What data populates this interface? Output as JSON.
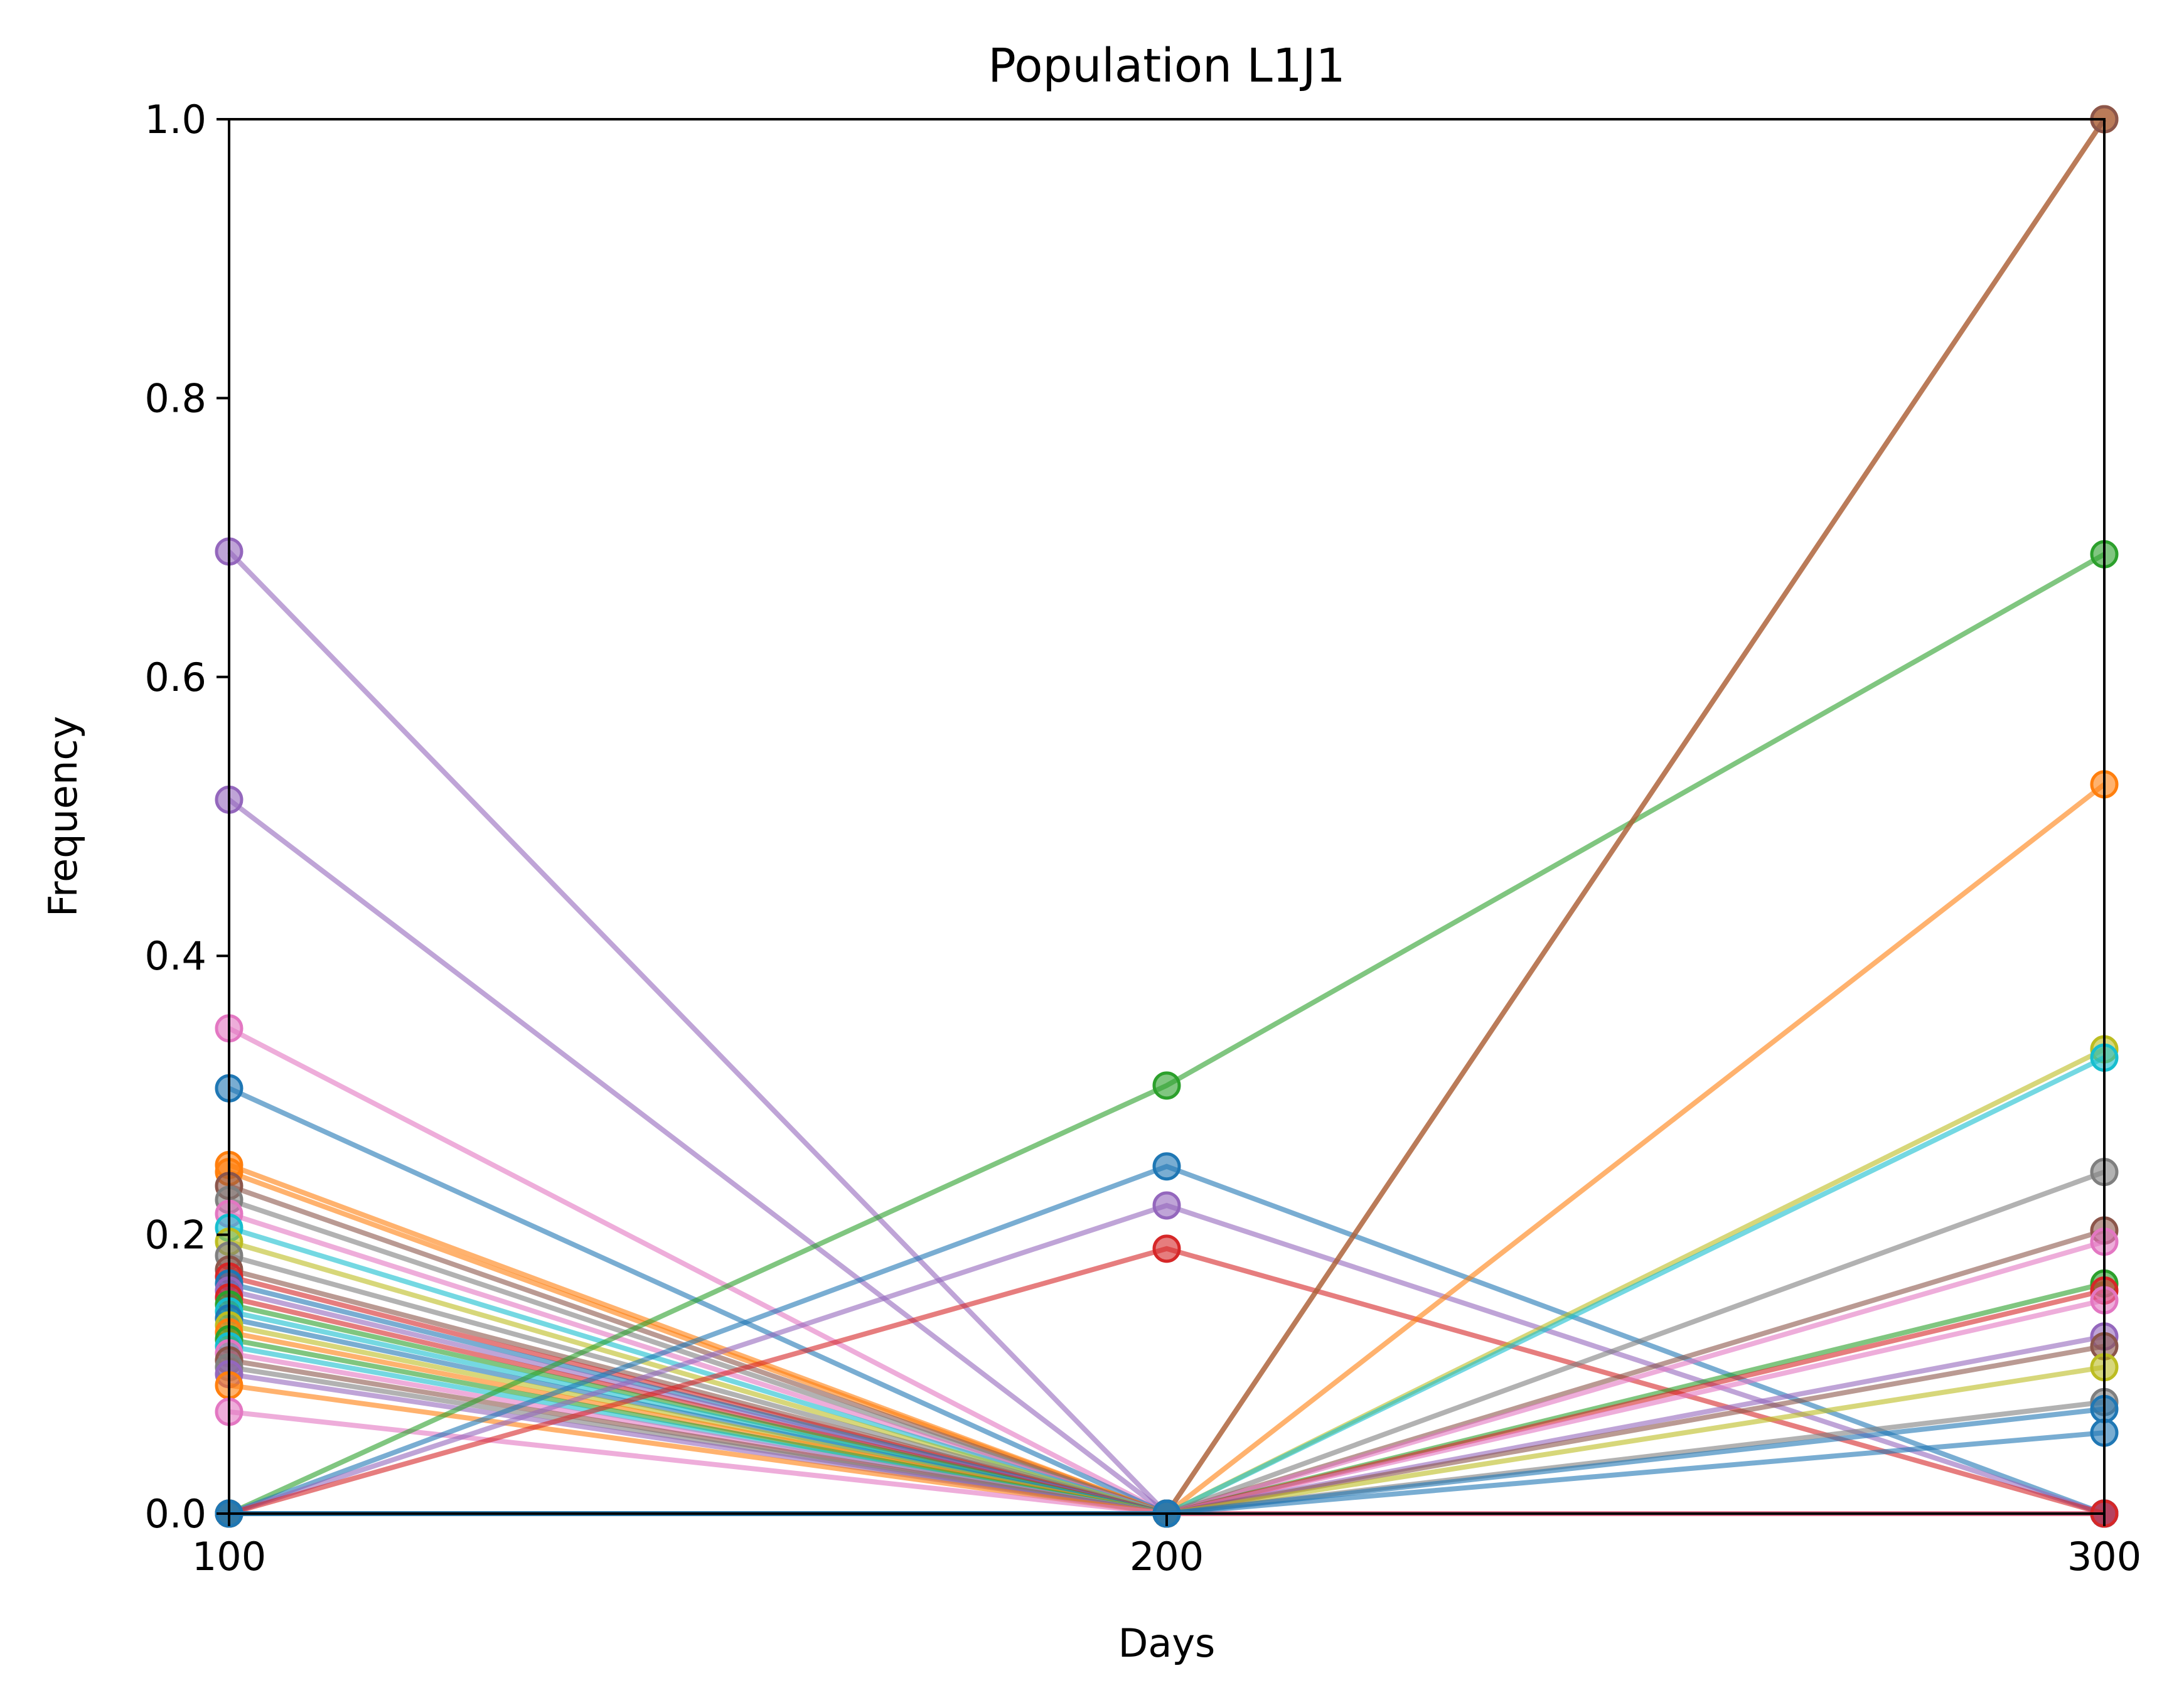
{
  "chart_data": {
    "type": "line",
    "title": "Population L1J1",
    "xlabel": "Days",
    "ylabel": "Frequency",
    "x": [
      100,
      200,
      300
    ],
    "xlim": [
      100,
      300
    ],
    "ylim": [
      0,
      1
    ],
    "x_ticks": [
      "100",
      "200",
      "300"
    ],
    "y_ticks": [
      "0.0",
      "0.2",
      "0.4",
      "0.6",
      "0.8",
      "1.0"
    ],
    "grid": false,
    "legend": "none",
    "series": [
      {
        "color": "#9467bd",
        "values": [
          0.69,
          0,
          0
        ]
      },
      {
        "color": "#9467bd",
        "values": [
          0.512,
          0,
          0
        ]
      },
      {
        "color": "#e377c2",
        "values": [
          0.348,
          0,
          0
        ]
      },
      {
        "color": "#1f77b4",
        "values": [
          0.305,
          0,
          0
        ]
      },
      {
        "color": "#ff7f0e",
        "values": [
          0.25,
          0,
          0
        ]
      },
      {
        "color": "#ff7f0e",
        "values": [
          0.245,
          0,
          0
        ]
      },
      {
        "color": "#8c564b",
        "values": [
          0.235,
          0,
          0
        ]
      },
      {
        "color": "#7f7f7f",
        "values": [
          0.225,
          0,
          0
        ]
      },
      {
        "color": "#e377c2",
        "values": [
          0.215,
          0,
          0
        ]
      },
      {
        "color": "#17becf",
        "values": [
          0.205,
          0,
          0
        ]
      },
      {
        "color": "#bcbd22",
        "values": [
          0.195,
          0,
          0
        ]
      },
      {
        "color": "#7f7f7f",
        "values": [
          0.185,
          0,
          0
        ]
      },
      {
        "color": "#8c564b",
        "values": [
          0.175,
          0,
          0
        ]
      },
      {
        "color": "#d62728",
        "values": [
          0.17,
          0,
          0
        ]
      },
      {
        "color": "#1f77b4",
        "values": [
          0.165,
          0,
          0
        ]
      },
      {
        "color": "#9467bd",
        "values": [
          0.16,
          0,
          0
        ]
      },
      {
        "color": "#d62728",
        "values": [
          0.155,
          0,
          0
        ]
      },
      {
        "color": "#2ca02c",
        "values": [
          0.15,
          0,
          0
        ]
      },
      {
        "color": "#17becf",
        "values": [
          0.145,
          0,
          0
        ]
      },
      {
        "color": "#1f77b4",
        "values": [
          0.14,
          0,
          0
        ]
      },
      {
        "color": "#bcbd22",
        "values": [
          0.135,
          0,
          0
        ]
      },
      {
        "color": "#ff7f0e",
        "values": [
          0.13,
          0,
          0
        ]
      },
      {
        "color": "#2ca02c",
        "values": [
          0.125,
          0,
          0
        ]
      },
      {
        "color": "#17becf",
        "values": [
          0.12,
          0,
          0
        ]
      },
      {
        "color": "#e377c2",
        "values": [
          0.115,
          0,
          0
        ]
      },
      {
        "color": "#8c564b",
        "values": [
          0.11,
          0,
          0
        ]
      },
      {
        "color": "#7f7f7f",
        "values": [
          0.105,
          0,
          0
        ]
      },
      {
        "color": "#9467bd",
        "values": [
          0.1,
          0,
          0
        ]
      },
      {
        "color": "#ff7f0e",
        "values": [
          0.092,
          0,
          0
        ]
      },
      {
        "color": "#e377c2",
        "values": [
          0.073,
          0,
          0
        ]
      },
      {
        "color": "#2ca02c",
        "values": [
          0,
          0.307,
          0.688
        ]
      },
      {
        "color": "#1f77b4",
        "values": [
          0,
          0.249,
          0
        ]
      },
      {
        "color": "#9467bd",
        "values": [
          0,
          0.221,
          0
        ]
      },
      {
        "color": "#d62728",
        "values": [
          0,
          0.19,
          0
        ]
      },
      {
        "color": "#ff7f0e",
        "values": [
          0,
          0,
          1.0
        ]
      },
      {
        "color": "#8c564b",
        "values": [
          0,
          0,
          1.0
        ]
      },
      {
        "color": "#ff7f0e",
        "values": [
          0,
          0,
          0.523
        ]
      },
      {
        "color": "#bcbd22",
        "values": [
          0,
          0,
          0.333
        ]
      },
      {
        "color": "#17becf",
        "values": [
          0,
          0,
          0.327
        ]
      },
      {
        "color": "#7f7f7f",
        "values": [
          0,
          0,
          0.245
        ]
      },
      {
        "color": "#8c564b",
        "values": [
          0,
          0,
          0.203
        ]
      },
      {
        "color": "#e377c2",
        "values": [
          0,
          0,
          0.195
        ]
      },
      {
        "color": "#2ca02c",
        "values": [
          0,
          0,
          0.165
        ]
      },
      {
        "color": "#d62728",
        "values": [
          0,
          0,
          0.16
        ]
      },
      {
        "color": "#e377c2",
        "values": [
          0,
          0,
          0.153
        ]
      },
      {
        "color": "#9467bd",
        "values": [
          0,
          0,
          0.127
        ]
      },
      {
        "color": "#8c564b",
        "values": [
          0,
          0,
          0.12
        ]
      },
      {
        "color": "#bcbd22",
        "values": [
          0,
          0,
          0.105
        ]
      },
      {
        "color": "#7f7f7f",
        "values": [
          0,
          0,
          0.08
        ]
      },
      {
        "color": "#1f77b4",
        "values": [
          0,
          0,
          0.075
        ]
      },
      {
        "color": "#1f77b4",
        "values": [
          0,
          0,
          0.058
        ]
      }
    ]
  }
}
